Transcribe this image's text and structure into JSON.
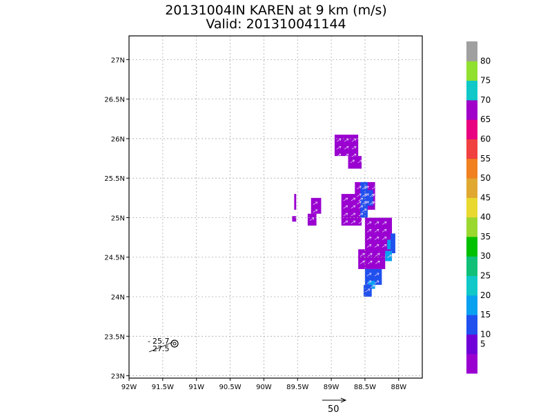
{
  "header": {
    "title": "20131004IN KAREN at 9 km (m/s)",
    "valid": "Valid: 201310041144"
  },
  "map": {
    "lon_min": -92.0,
    "lon_max": -87.65,
    "lat_min": 22.97,
    "lat_max": 27.3,
    "x_ticks": [
      {
        "lon": -92.0,
        "label": "92W"
      },
      {
        "lon": -91.5,
        "label": "91.5W"
      },
      {
        "lon": -91.0,
        "label": "91W"
      },
      {
        "lon": -90.5,
        "label": "90.5W"
      },
      {
        "lon": -90.0,
        "label": "90W"
      },
      {
        "lon": -89.5,
        "label": "89.5W"
      },
      {
        "lon": -89.0,
        "label": "89W"
      },
      {
        "lon": -88.5,
        "label": "88.5W"
      },
      {
        "lon": -88.0,
        "label": "88W"
      }
    ],
    "y_ticks": [
      {
        "lat": 23.0,
        "label": "23N"
      },
      {
        "lat": 23.5,
        "label": "23.5N"
      },
      {
        "lat": 24.0,
        "label": "24N"
      },
      {
        "lat": 24.5,
        "label": "24.5N"
      },
      {
        "lat": 25.0,
        "label": "25N"
      },
      {
        "lat": 25.5,
        "label": "25.5N"
      },
      {
        "lat": 26.0,
        "label": "26N"
      },
      {
        "lat": 26.5,
        "label": "26.5N"
      },
      {
        "lat": 27.0,
        "label": "27N"
      }
    ],
    "grid": true,
    "storm_center": {
      "lon": -91.36,
      "lat": 23.38,
      "icon": "hurricane-symbol-icon",
      "lat_label": "25.7",
      "lon_label": "27.5"
    },
    "reference_vector": {
      "label": "50",
      "unit_speed": 50
    }
  },
  "wind_cells": [
    {
      "lon0": -88.95,
      "lon1": -88.6,
      "lat0": 25.78,
      "lat1": 26.05,
      "color": "#9a00d0"
    },
    {
      "lon0": -88.75,
      "lon1": -88.55,
      "lat0": 25.62,
      "lat1": 25.78,
      "color": "#9a00d0"
    },
    {
      "lon0": -89.55,
      "lon1": -89.52,
      "lat0": 25.1,
      "lat1": 25.3,
      "color": "#9a00d0"
    },
    {
      "lon0": -89.58,
      "lon1": -89.52,
      "lat0": 24.95,
      "lat1": 25.02,
      "color": "#9a00d0"
    },
    {
      "lon0": -89.3,
      "lon1": -89.15,
      "lat0": 25.05,
      "lat1": 25.25,
      "color": "#9a00d0"
    },
    {
      "lon0": -89.35,
      "lon1": -89.22,
      "lat0": 24.9,
      "lat1": 25.05,
      "color": "#9a00d0"
    },
    {
      "lon0": -88.85,
      "lon1": -88.55,
      "lat0": 24.9,
      "lat1": 25.3,
      "color": "#9a00d0"
    },
    {
      "lon0": -88.65,
      "lon1": -88.35,
      "lat0": 25.1,
      "lat1": 25.45,
      "color": "#9a00d0"
    },
    {
      "lon0": -88.57,
      "lon1": -88.46,
      "lat0": 25.0,
      "lat1": 25.45,
      "color": "#2050ee"
    },
    {
      "lon0": -88.46,
      "lon1": -88.38,
      "lat0": 25.15,
      "lat1": 25.35,
      "color": "#2050ee"
    },
    {
      "lon0": -88.5,
      "lon1": -88.1,
      "lat0": 24.55,
      "lat1": 25.0,
      "color": "#9a00d0"
    },
    {
      "lon0": -88.6,
      "lon1": -88.2,
      "lat0": 24.35,
      "lat1": 24.6,
      "color": "#9a00d0"
    },
    {
      "lon0": -88.12,
      "lon1": -88.05,
      "lat0": 24.55,
      "lat1": 24.8,
      "color": "#2050ee"
    },
    {
      "lon0": -88.17,
      "lon1": -88.12,
      "lat0": 24.6,
      "lat1": 24.72,
      "color": "#0aa0f0"
    },
    {
      "lon0": -88.2,
      "lon1": -88.1,
      "lat0": 24.45,
      "lat1": 24.58,
      "color": "#0aa0f0"
    },
    {
      "lon0": -88.5,
      "lon1": -88.25,
      "lat0": 24.15,
      "lat1": 24.35,
      "color": "#2050ee"
    },
    {
      "lon0": -88.45,
      "lon1": -88.35,
      "lat0": 24.1,
      "lat1": 24.2,
      "color": "#0aa0f0"
    },
    {
      "lon0": -88.52,
      "lon1": -88.4,
      "lat0": 24.0,
      "lat1": 24.15,
      "color": "#2050ee"
    }
  ],
  "colorbar": {
    "colors": [
      "#9a00d0",
      "#7000d8",
      "#2050ee",
      "#0aa0f0",
      "#10c8c8",
      "#10c078",
      "#00c000",
      "#9ad830",
      "#e8d830",
      "#e0a830",
      "#f08020",
      "#f04040",
      "#e80080",
      "#a000c8",
      "#10c8c8",
      "#90e030",
      "#a0a0a0"
    ],
    "labels": [
      "5",
      "10",
      "15",
      "20",
      "25",
      "30",
      "35",
      "40",
      "45",
      "50",
      "55",
      "60",
      "65",
      "70",
      "75",
      "80"
    ]
  }
}
